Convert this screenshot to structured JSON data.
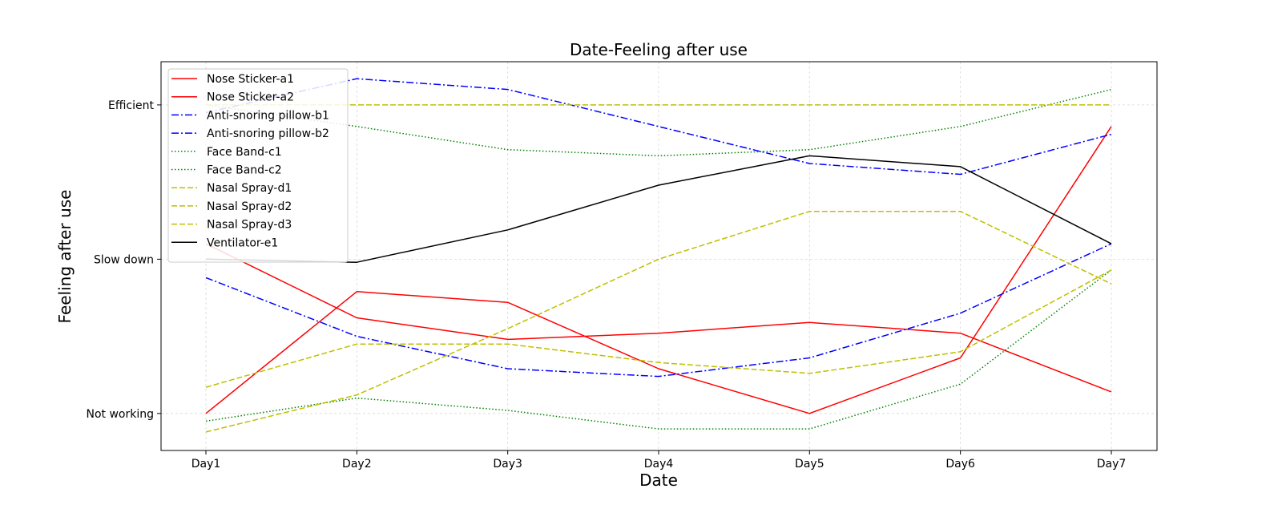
{
  "chart_data": {
    "type": "line",
    "title": "Date-Feeling after use",
    "xlabel": "Date",
    "ylabel": "Feeling after use",
    "categories": [
      "Day1",
      "Day2",
      "Day3",
      "Day4",
      "Day5",
      "Day6",
      "Day7"
    ],
    "y_ticks": [
      {
        "label": "Not working",
        "value": 0
      },
      {
        "label": "Slow down",
        "value": 1
      },
      {
        "label": "Efficient",
        "value": 2
      }
    ],
    "ylim": [
      -0.24,
      2.28
    ],
    "grid": true,
    "legend_position": "top-left",
    "series": [
      {
        "name": "Nose Sticker-a1",
        "color": "#ff0000",
        "dash": "solid",
        "values": [
          1.1,
          0.62,
          0.48,
          0.52,
          0.59,
          0.52,
          0.14
        ]
      },
      {
        "name": "Nose Sticker-a2",
        "color": "#ff0000",
        "dash": "solid",
        "values": [
          0.0,
          0.79,
          0.72,
          0.29,
          0.0,
          0.36,
          1.86
        ]
      },
      {
        "name": "Anti-snoring pillow-b1",
        "color": "#0000ff",
        "dash": "dashdot",
        "values": [
          1.95,
          2.17,
          2.1,
          1.86,
          1.62,
          1.55,
          1.81
        ]
      },
      {
        "name": "Anti-snoring pillow-b2",
        "color": "#0000ff",
        "dash": "dashdot",
        "values": [
          0.88,
          0.5,
          0.29,
          0.24,
          0.36,
          0.65,
          1.1
        ]
      },
      {
        "name": "Face Band-c1",
        "color": "#008000",
        "dash": "dotted",
        "values": [
          -0.05,
          0.1,
          0.02,
          -0.1,
          -0.1,
          0.19,
          0.93
        ]
      },
      {
        "name": "Face Band-c2",
        "color": "#008000",
        "dash": "dotted",
        "values": [
          2.0,
          1.86,
          1.71,
          1.67,
          1.71,
          1.86,
          2.1
        ]
      },
      {
        "name": "Nasal Spray-d1",
        "color": "#bfbf00",
        "dash": "dashed",
        "values": [
          0.17,
          0.45,
          0.45,
          0.33,
          0.26,
          0.4,
          0.93
        ]
      },
      {
        "name": "Nasal Spray-d2",
        "color": "#bfbf00",
        "dash": "dashed",
        "values": [
          2.0,
          2.0,
          2.0,
          2.0,
          2.0,
          2.0,
          2.0
        ]
      },
      {
        "name": "Nasal Spray-d3",
        "color": "#bfbf00",
        "dash": "dashed",
        "values": [
          -0.12,
          0.12,
          0.55,
          1.0,
          1.31,
          1.31,
          0.84
        ]
      },
      {
        "name": "Ventilator-e1",
        "color": "#000000",
        "dash": "solid",
        "values": [
          1.0,
          0.98,
          1.19,
          1.48,
          1.67,
          1.6,
          1.1
        ]
      }
    ]
  }
}
